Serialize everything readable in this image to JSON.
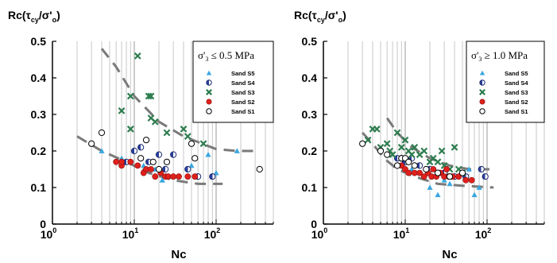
{
  "chart_data": [
    {
      "type": "scatter",
      "title": {
        "prefix": "Rc(τ",
        "sub1": "cy",
        "mid": "/σ'",
        "sub2": "o",
        "suffix": ")"
      },
      "xlabel": "Nc",
      "xscale": "log",
      "xlim": [
        1,
        500
      ],
      "ylim": [
        0,
        0.5
      ],
      "x_ticks": [
        {
          "base": "10",
          "exp": "0"
        },
        {
          "base": "10",
          "exp": "1"
        },
        {
          "base": "10",
          "exp": "2"
        }
      ],
      "y_ticks": [
        "0",
        "0.1",
        "0.2",
        "0.3",
        "0.4",
        "0.5"
      ],
      "grid": "vertical",
      "legend": {
        "placement": "top-right",
        "title": {
          "prefix": "σ'",
          "sub": "3",
          "suffix": " ≤ 0.5 MPa"
        }
      },
      "series": [
        {
          "name": "Sand S5",
          "marker": "triangle",
          "color": "#3aa6e0",
          "points": [
            [
              4,
              0.2
            ],
            [
              7,
              0.18
            ],
            [
              10,
              0.2
            ],
            [
              13,
              0.16
            ],
            [
              18,
              0.15
            ],
            [
              22,
              0.12
            ],
            [
              30,
              0.13
            ],
            [
              50,
              0.16
            ],
            [
              80,
              0.19
            ],
            [
              100,
              0.14
            ],
            [
              180,
              0.2
            ],
            [
              22,
              0.12
            ]
          ]
        },
        {
          "name": "Sand S4",
          "marker": "half",
          "color": "#2b3f9e",
          "points": [
            [
              8,
              0.17
            ],
            [
              10,
              0.2
            ],
            [
              12,
              0.21
            ],
            [
              15,
              0.17
            ],
            [
              20,
              0.19
            ],
            [
              24,
              0.15
            ],
            [
              30,
              0.19
            ],
            [
              45,
              0.15
            ],
            [
              60,
              0.13
            ],
            [
              90,
              0.13
            ]
          ]
        },
        {
          "name": "Sand S3",
          "marker": "x",
          "color": "#2e7d4f",
          "points": [
            [
              7,
              0.31
            ],
            [
              9,
              0.35
            ],
            [
              9,
              0.26
            ],
            [
              11,
              0.46
            ],
            [
              15,
              0.35
            ],
            [
              16,
              0.35
            ],
            [
              16,
              0.29
            ],
            [
              18,
              0.28
            ],
            [
              25,
              0.25
            ],
            [
              40,
              0.26
            ],
            [
              45,
              0.24
            ],
            [
              70,
              0.22
            ]
          ]
        },
        {
          "name": "Sand S2",
          "marker": "circle",
          "color": "#e0201d",
          "points": [
            [
              6,
              0.17
            ],
            [
              7,
              0.16
            ],
            [
              7,
              0.17
            ],
            [
              9,
              0.17
            ],
            [
              11,
              0.16
            ],
            [
              13,
              0.14
            ],
            [
              14,
              0.15
            ],
            [
              16,
              0.15
            ],
            [
              18,
              0.13
            ],
            [
              21,
              0.14
            ],
            [
              24,
              0.13
            ],
            [
              26,
              0.13
            ],
            [
              30,
              0.13
            ],
            [
              35,
              0.13
            ],
            [
              45,
              0.13
            ],
            [
              55,
              0.13
            ]
          ]
        },
        {
          "name": "Sand S1",
          "marker": "open-circle",
          "color": "#000000",
          "points": [
            [
              3,
              0.22
            ],
            [
              4,
              0.25
            ],
            [
              12,
              0.18
            ],
            [
              14,
              0.23
            ],
            [
              17,
              0.17
            ],
            [
              20,
              0.15
            ],
            [
              25,
              0.17
            ],
            [
              50,
              0.22
            ],
            [
              55,
              0.18
            ],
            [
              340,
              0.15
            ]
          ]
        }
      ],
      "trend_lines": [
        [
          [
            4,
            0.48
          ],
          [
            6,
            0.43
          ],
          [
            10,
            0.35
          ],
          [
            20,
            0.28
          ],
          [
            40,
            0.24
          ],
          [
            100,
            0.205
          ],
          [
            180,
            0.2
          ],
          [
            300,
            0.2
          ]
        ],
        [
          [
            2,
            0.24
          ],
          [
            4,
            0.2
          ],
          [
            8,
            0.17
          ],
          [
            15,
            0.14
          ],
          [
            30,
            0.12
          ],
          [
            60,
            0.11
          ],
          [
            120,
            0.11
          ]
        ]
      ]
    },
    {
      "type": "scatter",
      "title": {
        "prefix": "Rc(τ",
        "sub1": "cy",
        "mid": "/σ'",
        "sub2": "o",
        "suffix": ")"
      },
      "xlabel": "Nc",
      "xscale": "log",
      "xlim": [
        1,
        500
      ],
      "ylim": [
        0,
        0.5
      ],
      "x_ticks": [
        {
          "base": "10",
          "exp": "0"
        },
        {
          "base": "10",
          "exp": "1"
        },
        {
          "base": "10",
          "exp": "2"
        }
      ],
      "y_ticks": [
        "0",
        "0.1",
        "0.2",
        "0.3",
        "0.4",
        "0.5"
      ],
      "grid": "vertical",
      "legend": {
        "placement": "top-right",
        "title": {
          "prefix": "σ'",
          "sub": "3",
          "suffix": " ≥ 1.0 MPa"
        }
      },
      "series": [
        {
          "name": "Sand S5",
          "marker": "triangle",
          "color": "#3aa6e0",
          "points": [
            [
              12,
              0.15
            ],
            [
              15,
              0.14
            ],
            [
              20,
              0.1
            ],
            [
              25,
              0.08
            ],
            [
              30,
              0.12
            ],
            [
              40,
              0.13
            ],
            [
              60,
              0.15
            ],
            [
              70,
              0.08
            ],
            [
              80,
              0.1
            ],
            [
              35,
              0.11
            ]
          ]
        },
        {
          "name": "Sand S4",
          "marker": "half",
          "color": "#2b3f9e",
          "points": [
            [
              8,
              0.18
            ],
            [
              9,
              0.18
            ],
            [
              10,
              0.17
            ],
            [
              12,
              0.18
            ],
            [
              15,
              0.16
            ],
            [
              20,
              0.15
            ],
            [
              25,
              0.14
            ],
            [
              30,
              0.14
            ],
            [
              40,
              0.13
            ],
            [
              55,
              0.13
            ],
            [
              85,
              0.15
            ],
            [
              95,
              0.13
            ]
          ]
        },
        {
          "name": "Sand S3",
          "marker": "x",
          "color": "#2e7d4f",
          "points": [
            [
              3.5,
              0.23
            ],
            [
              4,
              0.26
            ],
            [
              4.5,
              0.26
            ],
            [
              5,
              0.21
            ],
            [
              6,
              0.22
            ],
            [
              6.5,
              0.2
            ],
            [
              7,
              0.19
            ],
            [
              8,
              0.25
            ],
            [
              9,
              0.21
            ],
            [
              10,
              0.23
            ],
            [
              11,
              0.2
            ],
            [
              12,
              0.19
            ],
            [
              13,
              0.21
            ],
            [
              15,
              0.19
            ],
            [
              17,
              0.2
            ],
            [
              20,
              0.17
            ],
            [
              22,
              0.18
            ],
            [
              25,
              0.17
            ],
            [
              28,
              0.2
            ],
            [
              30,
              0.16
            ],
            [
              35,
              0.15
            ],
            [
              40,
              0.21
            ],
            [
              45,
              0.15
            ],
            [
              50,
              0.14
            ]
          ]
        },
        {
          "name": "Sand S2",
          "marker": "circle",
          "color": "#e0201d",
          "points": [
            [
              9,
              0.16
            ],
            [
              10,
              0.15
            ],
            [
              11,
              0.14
            ],
            [
              13,
              0.14
            ],
            [
              15,
              0.14
            ],
            [
              17,
              0.13
            ],
            [
              19,
              0.14
            ],
            [
              21,
              0.13
            ],
            [
              24,
              0.13
            ],
            [
              27,
              0.14
            ],
            [
              30,
              0.13
            ],
            [
              34,
              0.13
            ],
            [
              38,
              0.13
            ],
            [
              45,
              0.13
            ],
            [
              55,
              0.12
            ],
            [
              65,
              0.12
            ],
            [
              22,
              0.15
            ],
            [
              32,
              0.15
            ]
          ]
        },
        {
          "name": "Sand S1",
          "marker": "open-circle",
          "color": "#000000",
          "points": [
            [
              3,
              0.22
            ],
            [
              5,
              0.2
            ],
            [
              6,
              0.19
            ],
            [
              8,
              0.16
            ],
            [
              9,
              0.18
            ],
            [
              10,
              0.18
            ],
            [
              11,
              0.17
            ],
            [
              13,
              0.16
            ],
            [
              18,
              0.15
            ],
            [
              25,
              0.14
            ],
            [
              35,
              0.13
            ],
            [
              50,
              0.14
            ]
          ]
        }
      ],
      "trend_lines": [
        [
          [
            6,
            0.29
          ],
          [
            8,
            0.25
          ],
          [
            12,
            0.21
          ],
          [
            20,
            0.18
          ],
          [
            35,
            0.16
          ],
          [
            60,
            0.15
          ],
          [
            120,
            0.15
          ]
        ],
        [
          [
            3,
            0.25
          ],
          [
            4,
            0.22
          ],
          [
            5.5,
            0.18
          ],
          [
            8,
            0.15
          ],
          [
            13,
            0.13
          ],
          [
            25,
            0.11
          ],
          [
            50,
            0.105
          ],
          [
            120,
            0.1
          ]
        ]
      ]
    }
  ]
}
